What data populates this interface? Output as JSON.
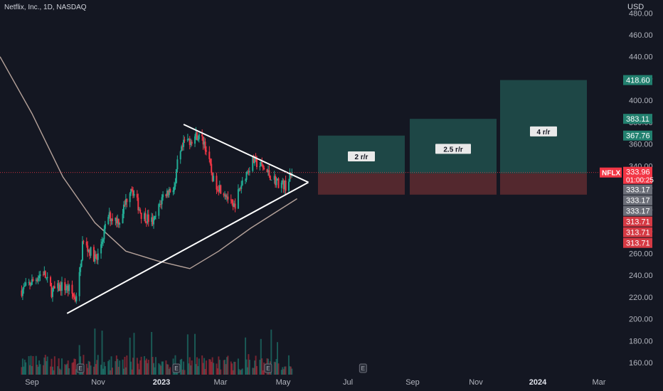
{
  "header": {
    "symbol_title": "Netflix, Inc., 1D, NASDAQ",
    "currency": "USD"
  },
  "colors": {
    "background": "#141722",
    "up": "#26a69a",
    "down": "#ef5350",
    "candle_up": "#22ab94",
    "candle_down": "#f23645",
    "profit_zone": "#1f4d4a",
    "loss_zone": "#5a2a30",
    "ma_line": "#b5a29a",
    "trendline": "#ffffff",
    "price_line": "#f23645",
    "axis_text": "#b2b5be"
  },
  "chart_data": {
    "type": "candlestick",
    "title": "Netflix, Inc., 1D, NASDAQ",
    "ylabel": "USD",
    "ylim": [
      152,
      484
    ],
    "y_ticks": [
      160,
      180,
      200,
      220,
      240,
      260,
      280,
      300,
      320,
      340,
      360,
      380,
      400,
      420,
      440,
      460,
      480
    ],
    "x_tick_labels": [
      "Sep",
      "Nov",
      "2023",
      "Mar",
      "May",
      "Jul",
      "Sep",
      "Nov",
      "2024",
      "Mar"
    ],
    "x_tick_bold": [
      "2023",
      "2024"
    ],
    "current_price": {
      "ticker": "NFLX",
      "value": "333.96",
      "countdown": "01:00:25"
    },
    "price_labels": [
      {
        "value": "418.60",
        "kind": "up"
      },
      {
        "value": "383.11",
        "kind": "up"
      },
      {
        "value": "367.76",
        "kind": "up"
      },
      {
        "value": "333.17",
        "kind": "neutral"
      },
      {
        "value": "333.17",
        "kind": "neutral"
      },
      {
        "value": "333.17",
        "kind": "neutral"
      },
      {
        "value": "313.71",
        "kind": "down"
      },
      {
        "value": "313.71",
        "kind": "down"
      },
      {
        "value": "313.71",
        "kind": "down"
      }
    ],
    "trade_zones": [
      {
        "label": "2 r/r",
        "entry": 333.17,
        "stop": 313.71,
        "target": 367.76
      },
      {
        "label": "2.5 r/r",
        "entry": 333.17,
        "stop": 313.71,
        "target": 383.11
      },
      {
        "label": "4 r/r",
        "entry": 333.17,
        "stop": 313.71,
        "target": 418.6
      }
    ],
    "price_path": [
      {
        "date": "2022-08-22",
        "close": 226
      },
      {
        "date": "2022-09-01",
        "close": 234
      },
      {
        "date": "2022-09-12",
        "close": 243
      },
      {
        "date": "2022-09-20",
        "close": 225
      },
      {
        "date": "2022-09-30",
        "close": 230
      },
      {
        "date": "2022-10-07",
        "close": 227
      },
      {
        "date": "2022-10-13",
        "close": 218
      },
      {
        "date": "2022-10-18",
        "close": 245
      },
      {
        "date": "2022-10-20",
        "close": 270
      },
      {
        "date": "2022-11-03",
        "close": 254
      },
      {
        "date": "2022-11-14",
        "close": 294
      },
      {
        "date": "2022-11-25",
        "close": 290
      },
      {
        "date": "2022-12-06",
        "close": 322
      },
      {
        "date": "2022-12-16",
        "close": 296
      },
      {
        "date": "2022-12-28",
        "close": 288
      },
      {
        "date": "2023-01-06",
        "close": 313
      },
      {
        "date": "2023-01-18",
        "close": 322
      },
      {
        "date": "2023-01-20",
        "close": 342
      },
      {
        "date": "2023-01-27",
        "close": 362
      },
      {
        "date": "2023-02-02",
        "close": 364
      },
      {
        "date": "2023-02-08",
        "close": 368
      },
      {
        "date": "2023-02-15",
        "close": 362
      },
      {
        "date": "2023-02-24",
        "close": 326
      },
      {
        "date": "2023-03-08",
        "close": 315
      },
      {
        "date": "2023-03-15",
        "close": 300
      },
      {
        "date": "2023-03-24",
        "close": 326
      },
      {
        "date": "2023-04-03",
        "close": 345
      },
      {
        "date": "2023-04-11",
        "close": 340
      },
      {
        "date": "2023-04-18",
        "close": 333
      },
      {
        "date": "2023-04-27",
        "close": 325
      },
      {
        "date": "2023-05-05",
        "close": 322
      },
      {
        "date": "2023-05-12",
        "close": 334
      }
    ],
    "moving_average": [
      {
        "date": "2022-08-01",
        "value": 440
      },
      {
        "date": "2022-09-01",
        "value": 388
      },
      {
        "date": "2022-10-01",
        "value": 330
      },
      {
        "date": "2022-11-01",
        "value": 288
      },
      {
        "date": "2022-12-01",
        "value": 262
      },
      {
        "date": "2023-01-01",
        "value": 253
      },
      {
        "date": "2023-02-01",
        "value": 246
      },
      {
        "date": "2023-03-01",
        "value": 262
      },
      {
        "date": "2023-04-01",
        "value": 283
      },
      {
        "date": "2023-05-16",
        "value": 310
      }
    ],
    "triangle": {
      "upper": [
        {
          "date": "2023-01-26",
          "price": 378
        },
        {
          "date": "2023-05-27",
          "price": 325
        }
      ],
      "lower": [
        {
          "date": "2022-10-05",
          "price": 205
        },
        {
          "date": "2023-05-27",
          "price": 325
        }
      ]
    },
    "earnings_markers": [
      {
        "date": "2022-10-18",
        "letter": "E"
      },
      {
        "date": "2023-01-19",
        "letter": "E"
      },
      {
        "date": "2023-04-18",
        "letter": "E"
      },
      {
        "date": "2023-07-19",
        "letter": "E"
      }
    ]
  }
}
